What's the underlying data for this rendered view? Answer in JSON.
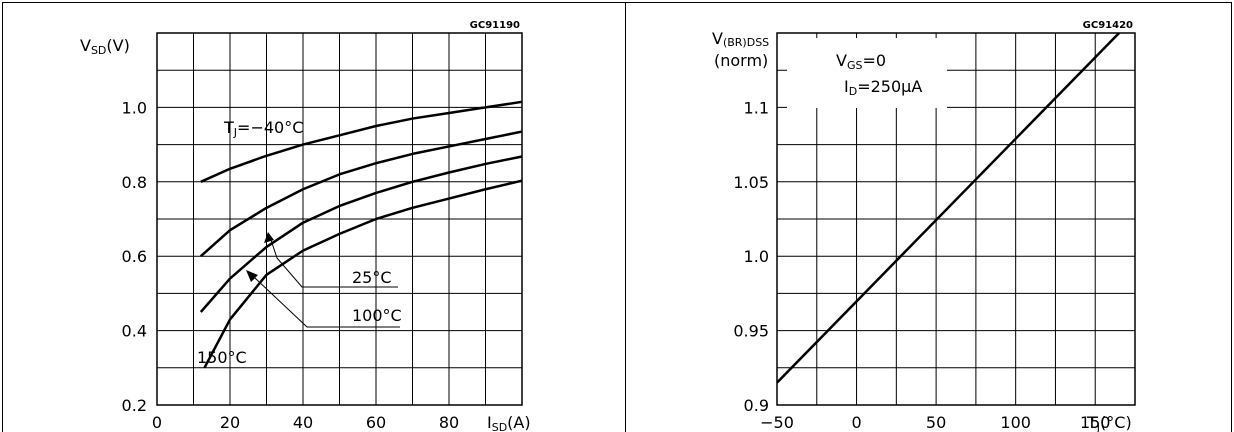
{
  "chart_data": [
    {
      "type": "line",
      "code": "GC91190",
      "ylabel_main": "V",
      "ylabel_sub": "SD",
      "ylabel_unit": "(V)",
      "xlabel_main": "I",
      "xlabel_sub": "SD",
      "xlabel_unit": "(A)",
      "xlim": [
        0,
        100
      ],
      "ylim": [
        0.2,
        1.2
      ],
      "xticks": [
        "0",
        "20",
        "40",
        "60",
        "80"
      ],
      "yticks": [
        "0.2",
        "0.4",
        "0.6",
        "0.8",
        "1.0"
      ],
      "grid": true,
      "series": [
        {
          "name": "TJ=−40°C",
          "x": [
            12,
            20,
            30,
            40,
            50,
            60,
            70,
            80,
            90,
            100
          ],
          "y": [
            0.8,
            0.835,
            0.87,
            0.9,
            0.925,
            0.95,
            0.97,
            0.985,
            1.0,
            1.015
          ]
        },
        {
          "name": "25°C",
          "x": [
            12,
            20,
            30,
            40,
            50,
            60,
            70,
            80,
            90,
            100
          ],
          "y": [
            0.6,
            0.67,
            0.73,
            0.78,
            0.82,
            0.85,
            0.875,
            0.895,
            0.915,
            0.935
          ]
        },
        {
          "name": "100°C",
          "x": [
            12,
            20,
            30,
            40,
            50,
            60,
            70,
            80,
            90,
            100
          ],
          "y": [
            0.45,
            0.54,
            0.625,
            0.69,
            0.735,
            0.77,
            0.8,
            0.825,
            0.848,
            0.868
          ]
        },
        {
          "name": "150°C",
          "x": [
            13,
            20,
            30,
            40,
            50,
            60,
            70,
            80,
            90,
            100
          ],
          "y": [
            0.3,
            0.43,
            0.55,
            0.615,
            0.66,
            0.7,
            0.73,
            0.755,
            0.78,
            0.803
          ]
        }
      ],
      "annotations": [
        {
          "label_main": "T",
          "label_sub": "J",
          "label_rest": "=−40°C"
        },
        {
          "text": "25°C"
        },
        {
          "text": "100°C"
        },
        {
          "text": "150°C"
        }
      ]
    },
    {
      "type": "line",
      "code": "GC91420",
      "ylabel_line1_main": "V",
      "ylabel_line1_sub": "(BR)DSS",
      "ylabel_line2": "(norm)",
      "xlabel_main": "T",
      "xlabel_sub": "J",
      "xlabel_unit": "(°C)",
      "xlim": [
        -50,
        175
      ],
      "ylim": [
        0.9,
        1.15
      ],
      "xticks": [
        "−50",
        "0",
        "50",
        "100",
        "150"
      ],
      "yticks": [
        "0.9",
        "0.95",
        "1.0",
        "1.05",
        "1.1"
      ],
      "grid": true,
      "conditions": [
        {
          "main": "V",
          "sub": "GS",
          "rest": "=0"
        },
        {
          "main": "I",
          "sub": "D",
          "rest": "=250μA"
        }
      ],
      "series": [
        {
          "x": [
            -50,
            165
          ],
          "y": [
            0.915,
            1.15
          ]
        }
      ]
    }
  ]
}
